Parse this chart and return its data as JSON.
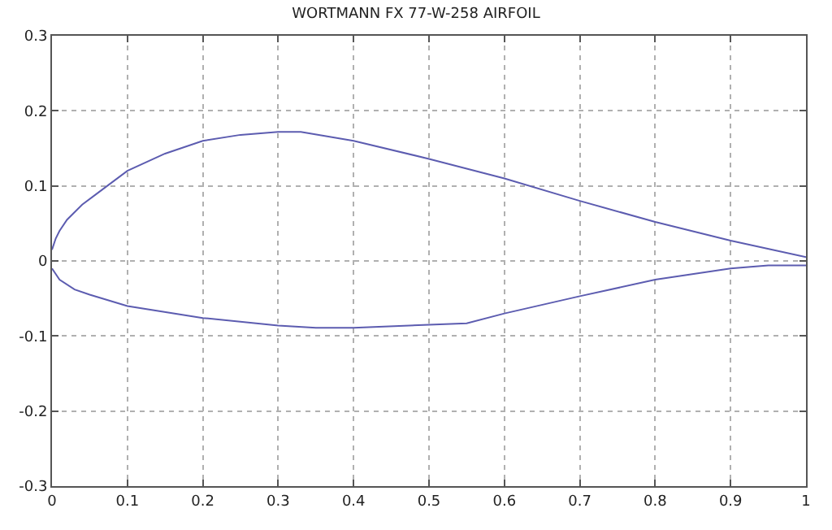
{
  "chart_data": {
    "type": "line",
    "title": "WORTMANN FX 77-W-258 AIRFOIL",
    "series": [
      {
        "color": "#5c5cb0",
        "x": [
          0,
          0.005,
          0.01,
          0.02,
          0.04,
          0.06,
          0.1,
          0.15,
          0.2,
          0.25,
          0.3,
          0.33,
          0.4,
          0.5,
          0.6,
          0.7,
          0.8,
          0.9,
          1
        ],
        "values": [
          0.015,
          0.03,
          0.04,
          0.055,
          0.075,
          0.09,
          0.12,
          0.143,
          0.16,
          0.168,
          0.172,
          0.172,
          0.16,
          0.136,
          0.11,
          0.08,
          0.052,
          0.027,
          0.005
        ]
      },
      {
        "color": "#5c5cb0",
        "x": [
          0,
          0.01,
          0.03,
          0.05,
          0.1,
          0.2,
          0.3,
          0.35,
          0.4,
          0.5,
          0.55,
          0.6,
          0.7,
          0.8,
          0.9,
          0.95,
          1
        ],
        "values": [
          -0.01,
          -0.025,
          -0.038,
          -0.045,
          -0.06,
          -0.076,
          -0.086,
          -0.089,
          -0.089,
          -0.085,
          -0.083,
          -0.07,
          -0.047,
          -0.025,
          -0.01,
          -0.006,
          -0.006
        ]
      }
    ],
    "xlim": [
      0,
      1
    ],
    "xticks": [
      0,
      0.1,
      0.2,
      0.3,
      0.4,
      0.5,
      0.6,
      0.7,
      0.8,
      0.9,
      1
    ],
    "ylim": [
      -0.3,
      0.3
    ],
    "yticks": [
      -0.3,
      -0.2,
      -0.1,
      0,
      0.1,
      0.2,
      0.3
    ],
    "grid": true,
    "legend": false,
    "marker": "none",
    "line_style": "solid"
  }
}
